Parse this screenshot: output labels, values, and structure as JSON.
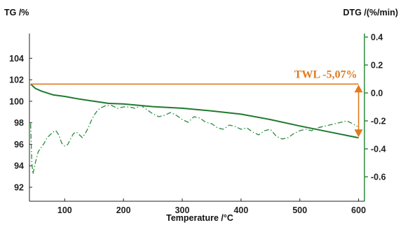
{
  "chart_data": {
    "type": "line",
    "ylabel": "TG /%",
    "y2label": "DTG /(%/min)",
    "xlabel": "Temperature /°C",
    "xlim": [
      40,
      610
    ],
    "ylim": [
      90.7,
      106.3
    ],
    "y2lim": [
      -0.775,
      0.425
    ],
    "xticks": [
      "100",
      "200",
      "300",
      "400",
      "500",
      "600"
    ],
    "yticks": [
      "92",
      "94",
      "96",
      "98",
      "100",
      "102",
      "104"
    ],
    "y2ticks": [
      "-0.6",
      "-0.4",
      "-0.2",
      "0.0",
      "0.2",
      "0.4"
    ],
    "grid": false,
    "colors": {
      "tg": "#1f7a2e",
      "dtg": "#2e8b3e",
      "annotation": "#e07b20",
      "axis_right": "#2e8b3e"
    },
    "annotation": {
      "text": "TWL -5,07%",
      "start_x": 42,
      "start_tg": 101.6,
      "end_x": 600,
      "end_tg": 96.6
    },
    "series": [
      {
        "axis": "left",
        "style": "solid",
        "x": [
          42,
          50,
          60,
          80,
          100,
          125,
          150,
          175,
          200,
          250,
          300,
          350,
          400,
          450,
          500,
          550,
          600
        ],
        "y": [
          101.6,
          101.2,
          100.95,
          100.6,
          100.45,
          100.2,
          100.0,
          99.8,
          99.75,
          99.5,
          99.35,
          99.1,
          98.8,
          98.3,
          97.7,
          97.15,
          96.6
        ]
      },
      {
        "axis": "right",
        "style": "dashdot",
        "x": [
          42,
          44,
          46,
          50,
          55,
          60,
          65,
          70,
          75,
          80,
          85,
          90,
          95,
          100,
          105,
          110,
          115,
          120,
          125,
          130,
          135,
          140,
          145,
          150,
          155,
          160,
          165,
          170,
          175,
          180,
          185,
          190,
          200,
          210,
          220,
          230,
          240,
          250,
          260,
          270,
          280,
          290,
          300,
          310,
          320,
          330,
          340,
          350,
          360,
          370,
          380,
          390,
          400,
          410,
          420,
          430,
          440,
          450,
          460,
          470,
          480,
          490,
          500,
          510,
          520,
          530,
          540,
          550,
          560,
          570,
          580,
          590,
          598
        ],
        "y": [
          -0.22,
          -0.5,
          -0.58,
          -0.5,
          -0.42,
          -0.39,
          -0.36,
          -0.32,
          -0.3,
          -0.28,
          -0.27,
          -0.3,
          -0.36,
          -0.38,
          -0.37,
          -0.33,
          -0.29,
          -0.28,
          -0.3,
          -0.32,
          -0.29,
          -0.25,
          -0.2,
          -0.16,
          -0.13,
          -0.11,
          -0.1,
          -0.09,
          -0.09,
          -0.09,
          -0.1,
          -0.11,
          -0.1,
          -0.1,
          -0.11,
          -0.09,
          -0.12,
          -0.15,
          -0.17,
          -0.16,
          -0.14,
          -0.16,
          -0.19,
          -0.21,
          -0.17,
          -0.18,
          -0.21,
          -0.22,
          -0.25,
          -0.26,
          -0.23,
          -0.24,
          -0.26,
          -0.25,
          -0.28,
          -0.3,
          -0.27,
          -0.26,
          -0.31,
          -0.33,
          -0.32,
          -0.29,
          -0.27,
          -0.26,
          -0.27,
          -0.25,
          -0.24,
          -0.23,
          -0.22,
          -0.21,
          -0.2,
          -0.22,
          -0.24
        ]
      }
    ]
  }
}
